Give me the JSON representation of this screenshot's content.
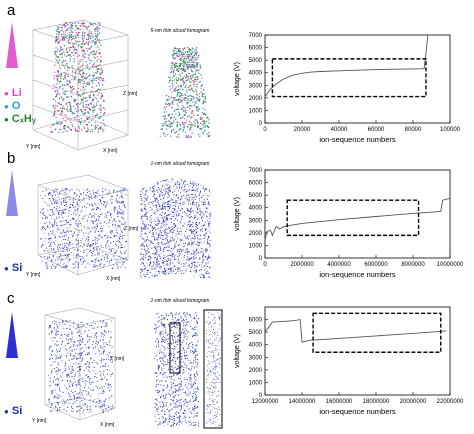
{
  "panels": [
    {
      "letter": "a",
      "triangle_color": "#e05ccf",
      "legend": [
        {
          "label": "Li",
          "color": "#e046d0"
        },
        {
          "label": "O",
          "color": "#1fa7c9"
        },
        {
          "label": "CₓHᵧ",
          "color": "#2e7d32"
        }
      ],
      "tomogram_title": "5-nm thin sliced fomogram",
      "box_axes": {
        "z": "Z [nm]",
        "y": "Y [nm]",
        "x": "X [nm]"
      },
      "chart_id": 0
    },
    {
      "letter": "b",
      "triangle_color": "#8f8ae8",
      "legend": [
        {
          "label": "Si",
          "color": "#1d2fa8"
        }
      ],
      "tomogram_title": "1-nm thin sliced fomogram",
      "box_axes": {
        "z": "Z [nm]",
        "y": "Y [nm]",
        "x": "X [nm]"
      },
      "chart_id": 1
    },
    {
      "letter": "c",
      "triangle_color": "#2d2ed6",
      "legend": [
        {
          "label": "Si",
          "color": "#1d2fa8"
        }
      ],
      "tomogram_title": "1-nm thin sliced fomogram",
      "box_axes": {
        "z": "Z [nm]",
        "y": "Y [nm]",
        "x": "X [nm]"
      },
      "chart_id": 2
    }
  ],
  "chart_data": [
    {
      "type": "line",
      "ylabel": "voltage (V)",
      "xlabel": "ion-sequence numbers",
      "xlim": [
        0,
        100000
      ],
      "ylim": [
        0,
        7000
      ],
      "xticks": [
        0,
        20000,
        40000,
        60000,
        80000,
        100000
      ],
      "yticks": [
        0,
        1000,
        2000,
        3000,
        4000,
        5000,
        6000,
        7000
      ],
      "series": [
        {
          "x": [
            0,
            3000,
            6000,
            10000,
            15000,
            20000,
            25000,
            30000,
            40000,
            50000,
            60000,
            70000,
            80000,
            86000,
            87000,
            88000
          ],
          "y": [
            2100,
            2700,
            3100,
            3500,
            3800,
            3950,
            4050,
            4100,
            4150,
            4200,
            4250,
            4280,
            4300,
            4320,
            5500,
            7000
          ]
        }
      ],
      "dashed_box": {
        "x": [
          4000,
          87000
        ],
        "y": [
          2100,
          5100
        ]
      }
    },
    {
      "type": "line",
      "ylabel": "voltage (V)",
      "xlabel": "ion-sequence numbers",
      "xlim": [
        0,
        10000000
      ],
      "ylim": [
        0,
        7000
      ],
      "xticks": [
        0,
        2000000,
        4000000,
        6000000,
        8000000,
        10000000
      ],
      "yticks": [
        0,
        1000,
        2000,
        3000,
        4000,
        5000,
        6000,
        7000
      ],
      "series": [
        {
          "x": [
            0,
            100000,
            300000,
            400000,
            600000,
            800000,
            1000000,
            2000000,
            4000000,
            6000000,
            8000000,
            9500000,
            9600000,
            10000000
          ],
          "y": [
            1400,
            2100,
            2200,
            1800,
            2500,
            2300,
            2500,
            2750,
            3050,
            3300,
            3550,
            3700,
            4600,
            4750
          ]
        }
      ],
      "dashed_box": {
        "x": [
          1200000,
          8300000
        ],
        "y": [
          1800,
          4600
        ]
      }
    },
    {
      "type": "line",
      "ylabel": "voltage (V)",
      "xlabel": "ion-sequence numbers",
      "xlim": [
        12000000,
        22000000
      ],
      "ylim": [
        0,
        7000
      ],
      "xticks": [
        12000000,
        14000000,
        16000000,
        18000000,
        20000000,
        22000000
      ],
      "yticks": [
        0,
        1000,
        2000,
        3000,
        4000,
        5000,
        6000
      ],
      "series": [
        {
          "x": [
            12000000,
            12400000,
            13500000,
            13900000,
            14000000,
            14400000,
            16000000,
            18000000,
            20000000,
            21800000
          ],
          "y": [
            5000,
            5800,
            5900,
            6000,
            4200,
            4350,
            4500,
            4700,
            4900,
            5100
          ]
        }
      ],
      "dashed_box": {
        "x": [
          14600000,
          21500000
        ],
        "y": [
          3400,
          6500
        ]
      }
    }
  ]
}
